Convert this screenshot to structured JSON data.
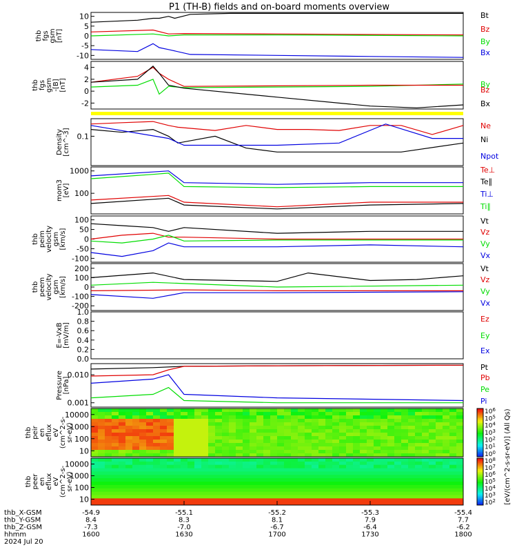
{
  "title": "P1 (TH-B) fields and on-board moments overview",
  "colors": {
    "black": "#000000",
    "red": "#e00000",
    "green": "#00dd00",
    "blue": "#0000e0",
    "yellow": "#ffff00"
  },
  "chart_data": [
    {
      "type": "line",
      "ylabel": [
        "thb",
        "fgs",
        "gsm",
        "[nT]"
      ],
      "yticks": [
        "10",
        "5",
        "0",
        "-5",
        "-10"
      ],
      "ylim": [
        -12,
        12
      ],
      "series": [
        {
          "name": "Bt",
          "color": "black",
          "x": [
            1600,
            1615,
            1620,
            1622,
            1625,
            1627,
            1632,
            1645,
            1700,
            1730,
            1800
          ],
          "values": [
            7,
            8,
            9,
            9,
            10,
            9,
            11,
            11.5,
            11.5,
            11.5,
            11.5
          ]
        },
        {
          "name": "Bz",
          "color": "red",
          "x": [
            1600,
            1620,
            1625,
            1630,
            1700,
            1730,
            1800
          ],
          "values": [
            2,
            3,
            1,
            1.2,
            1,
            0.7,
            0.5
          ]
        },
        {
          "name": "By",
          "color": "green",
          "x": [
            1600,
            1620,
            1625,
            1630,
            1700,
            1800
          ],
          "values": [
            0,
            1,
            0,
            0.5,
            0.5,
            0
          ]
        },
        {
          "name": "Bx",
          "color": "blue",
          "x": [
            1600,
            1615,
            1620,
            1622,
            1625,
            1632,
            1700,
            1730,
            1800
          ],
          "values": [
            -7,
            -8,
            -4,
            -6,
            -7,
            -9.5,
            -10,
            -10.5,
            -11
          ]
        }
      ]
    },
    {
      "type": "line",
      "ylabel": [
        "thb",
        "fgs",
        "gsm",
        "-[B]",
        "[nT]"
      ],
      "yticks": [
        "4",
        "2",
        "0",
        "-2"
      ],
      "ylim": [
        -3,
        5
      ],
      "series": [
        {
          "name": "By",
          "color": "green",
          "x": [
            1600,
            1615,
            1620,
            1622,
            1625,
            1630,
            1700,
            1730,
            1800
          ],
          "values": [
            0.7,
            1,
            2,
            -0.5,
            0.8,
            0.6,
            0.7,
            0.8,
            1.2
          ]
        },
        {
          "name": "Bz",
          "color": "red",
          "x": [
            1600,
            1615,
            1620,
            1622,
            1625,
            1630,
            1700,
            1730,
            1800
          ],
          "values": [
            1.5,
            2.5,
            4,
            3,
            2,
            0.8,
            0.9,
            1,
            1
          ]
        },
        {
          "name": "Bx",
          "color": "black",
          "x": [
            1600,
            1615,
            1620,
            1622,
            1625,
            1630,
            1700,
            1730,
            1745,
            1800
          ],
          "values": [
            1.5,
            2,
            4.2,
            3,
            1,
            0.5,
            -1,
            -2.5,
            -2.8,
            -2.3
          ]
        }
      ]
    },
    {
      "type": "line",
      "ylabel": [
        "Density",
        "[cm^-3]"
      ],
      "yticks": [
        "0.1"
      ],
      "scale": "log",
      "ylim": [
        0.005,
        0.6
      ],
      "series": [
        {
          "name": "Ne",
          "color": "red",
          "x": [
            1600,
            1610,
            1620,
            1625,
            1628,
            1640,
            1650,
            1700,
            1710,
            1720,
            1730,
            1740,
            1750,
            1800
          ],
          "values": [
            0.35,
            0.4,
            0.45,
            0.3,
            0.25,
            0.18,
            0.3,
            0.2,
            0.2,
            0.18,
            0.3,
            0.3,
            0.12,
            0.3
          ]
        },
        {
          "name": "Ni",
          "color": "black",
          "x": [
            1600,
            1610,
            1620,
            1625,
            1628,
            1640,
            1650,
            1700,
            1720,
            1740,
            1800
          ],
          "values": [
            0.2,
            0.15,
            0.2,
            0.1,
            0.05,
            0.1,
            0.03,
            0.02,
            0.02,
            0.02,
            0.05
          ]
        },
        {
          "name": "Npot",
          "color": "blue",
          "x": [
            1600,
            1625,
            1630,
            1700,
            1720,
            1735,
            1750,
            1800
          ],
          "values": [
            0.3,
            0.08,
            0.04,
            0.04,
            0.05,
            0.35,
            0.08,
            0.08
          ]
        }
      ]
    },
    {
      "type": "line",
      "ylabel": [
        "mom3",
        "[eV]"
      ],
      "yticks": [
        "1000",
        "100"
      ],
      "scale": "log",
      "ylim": [
        12,
        1500
      ],
      "series": [
        {
          "name": "Te⊥",
          "color": "red",
          "x": [
            1600,
            1625,
            1630,
            1700,
            1730,
            1800
          ],
          "values": [
            50,
            80,
            40,
            25,
            40,
            40
          ]
        },
        {
          "name": "Te∥",
          "color": "black",
          "x": [
            1600,
            1625,
            1630,
            1700,
            1730,
            1800
          ],
          "values": [
            35,
            60,
            30,
            20,
            30,
            35
          ]
        },
        {
          "name": "Ti⊥",
          "color": "blue",
          "x": [
            1600,
            1620,
            1625,
            1630,
            1700,
            1730,
            1800
          ],
          "values": [
            600,
            900,
            1000,
            300,
            250,
            300,
            300
          ]
        },
        {
          "name": "Ti∥",
          "color": "green",
          "x": [
            1600,
            1620,
            1625,
            1630,
            1700,
            1730,
            1800
          ],
          "values": [
            450,
            700,
            800,
            200,
            180,
            200,
            200
          ]
        }
      ]
    },
    {
      "type": "line",
      "ylabel": [
        "thb",
        "peim",
        "velocity",
        "gsm",
        "[km/s]"
      ],
      "yticks": [
        "100",
        "50",
        "0",
        "-50",
        "-100"
      ],
      "ylim": [
        -120,
        120
      ],
      "series": [
        {
          "name": "Vt",
          "color": "black",
          "x": [
            1600,
            1610,
            1620,
            1625,
            1630,
            1700,
            1730,
            1800
          ],
          "values": [
            80,
            70,
            60,
            40,
            60,
            30,
            40,
            40
          ]
        },
        {
          "name": "Vz",
          "color": "red",
          "x": [
            1600,
            1610,
            1620,
            1625,
            1630,
            1700,
            1800
          ],
          "values": [
            0,
            20,
            30,
            10,
            10,
            0,
            0
          ]
        },
        {
          "name": "Vy",
          "color": "green",
          "x": [
            1600,
            1610,
            1620,
            1625,
            1630,
            1700,
            1800
          ],
          "values": [
            -10,
            -20,
            0,
            20,
            -10,
            -5,
            -5
          ]
        },
        {
          "name": "Vx",
          "color": "blue",
          "x": [
            1600,
            1610,
            1620,
            1625,
            1630,
            1700,
            1730,
            1800
          ],
          "values": [
            -70,
            -90,
            -60,
            -20,
            -40,
            -40,
            -30,
            -40
          ]
        }
      ]
    },
    {
      "type": "line",
      "ylabel": [
        "thb",
        "peem",
        "velocity",
        "gsm",
        "[km/s]"
      ],
      "yticks": [
        "200",
        "100",
        "0",
        "-100",
        "-200"
      ],
      "ylim": [
        -250,
        250
      ],
      "series": [
        {
          "name": "Vt",
          "color": "black",
          "x": [
            1600,
            1620,
            1630,
            1700,
            1710,
            1730,
            1745,
            1800
          ],
          "values": [
            100,
            150,
            80,
            60,
            150,
            70,
            80,
            120
          ]
        },
        {
          "name": "Vz",
          "color": "red",
          "x": [
            1600,
            1630,
            1700,
            1800
          ],
          "values": [
            -40,
            -30,
            -40,
            -40
          ]
        },
        {
          "name": "Vy",
          "color": "green",
          "x": [
            1600,
            1620,
            1700,
            1800
          ],
          "values": [
            20,
            50,
            0,
            20
          ]
        },
        {
          "name": "Vx",
          "color": "blue",
          "x": [
            1600,
            1620,
            1630,
            1700,
            1800
          ],
          "values": [
            -80,
            -120,
            -60,
            -60,
            -50
          ]
        }
      ]
    },
    {
      "type": "line",
      "ylabel": [
        "E=-VxB",
        "[mV/m]"
      ],
      "yticks": [
        "1.0",
        "0.8",
        "0.6",
        "0.4",
        "0.2",
        "0.0"
      ],
      "ylim": [
        0,
        1
      ],
      "series": [
        {
          "name": "Ez",
          "color": "red",
          "x": [],
          "values": []
        },
        {
          "name": "Ey",
          "color": "green",
          "x": [],
          "values": []
        },
        {
          "name": "Ex",
          "color": "blue",
          "x": [],
          "values": []
        }
      ]
    },
    {
      "type": "line",
      "ylabel": [
        "Pressure",
        "[nPa]"
      ],
      "yticks": [
        "0.010",
        "0.001"
      ],
      "scale": "log",
      "ylim": [
        0.0007,
        0.025
      ],
      "series": [
        {
          "name": "Pt",
          "color": "black",
          "x": [
            1600,
            1620,
            1630,
            1700,
            1800
          ],
          "values": [
            0.016,
            0.018,
            0.02,
            0.021,
            0.022
          ]
        },
        {
          "name": "Pb",
          "color": "red",
          "x": [
            1600,
            1620,
            1625,
            1630,
            1700,
            1800
          ],
          "values": [
            0.009,
            0.01,
            0.015,
            0.02,
            0.021,
            0.022
          ]
        },
        {
          "name": "Pe",
          "color": "green",
          "x": [
            1600,
            1620,
            1625,
            1630,
            1700,
            1800
          ],
          "values": [
            0.0015,
            0.002,
            0.0035,
            0.0012,
            0.001,
            0.001
          ]
        },
        {
          "name": "Pi",
          "color": "blue",
          "x": [
            1600,
            1620,
            1625,
            1630,
            1700,
            1800
          ],
          "values": [
            0.005,
            0.007,
            0.01,
            0.002,
            0.0015,
            0.0012
          ]
        }
      ]
    },
    {
      "type": "heatmap",
      "ylabel": [
        "thb",
        "peir",
        "en",
        "eflux",
        "eV",
        "(cm^2-s-",
        "sr-eV)"
      ],
      "yticks": [
        "10000",
        "1000",
        "100",
        "10"
      ]
    },
    {
      "type": "heatmap",
      "ylabel": [
        "thb",
        "peer",
        "en",
        "eflux",
        "eV",
        "(cm^2-s-",
        "sr-eV)"
      ],
      "yticks": [
        "10000",
        "1000",
        "100",
        "10"
      ]
    }
  ],
  "colorbar": {
    "label": "[eV/(cm^2-s-sr-eV)] (All Qs)",
    "ticks_top": [
      "10^6",
      "10^5",
      "10^4",
      "10^3",
      "10^2",
      "10^1",
      "10^0"
    ],
    "ticks_bottom": [
      "10^8",
      "10^7",
      "10^6",
      "10^5",
      "10^4",
      "10^3",
      "10^2"
    ]
  },
  "xaxis": {
    "rows": [
      {
        "label": "thb_X-GSM",
        "values": [
          "-54.9",
          "-55.1",
          "-55.2",
          "-55.3",
          "-55.4"
        ]
      },
      {
        "label": "thb_Y-GSM",
        "values": [
          "8.4",
          "8.3",
          "8.1",
          "7.9",
          "7.7"
        ]
      },
      {
        "label": "thb_Z-GSM",
        "values": [
          "-7.3",
          "-7.0",
          "-6.7",
          "-6.4",
          "-6.2"
        ]
      },
      {
        "label": "hhmm",
        "values": [
          "1600",
          "1630",
          "1700",
          "1730",
          "1800"
        ]
      }
    ],
    "date": "2024 Jul 20"
  }
}
